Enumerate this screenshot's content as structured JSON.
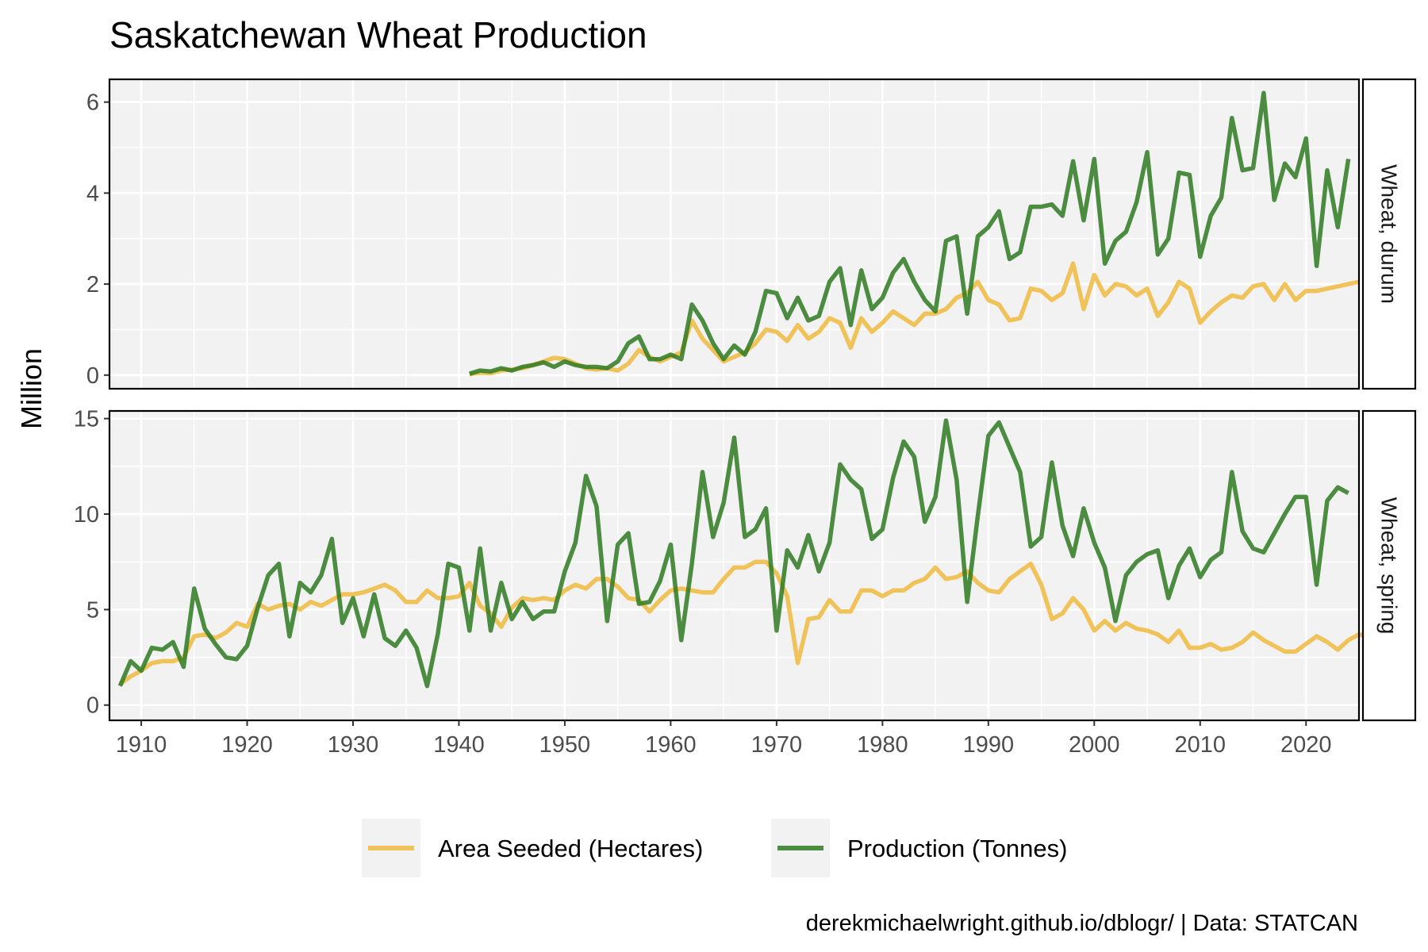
{
  "chart_data": {
    "type": "line",
    "title": "Saskatchewan Wheat Production",
    "ylabel": "Million",
    "xlabel": "",
    "caption": "derekmichaelwright.github.io/dblogr/ | Data: STATCAN",
    "xlim": [
      1907,
      2025
    ],
    "x_ticks": [
      1910,
      1920,
      1930,
      1940,
      1950,
      1960,
      1970,
      1980,
      1990,
      2000,
      2010,
      2020
    ],
    "legend_position": "bottom",
    "grid": true,
    "series_meta": [
      {
        "name": "Area Seeded (Hectares)",
        "color": "#F0BA40"
      },
      {
        "name": "Production (Tonnes)",
        "color": "#2E7A22"
      }
    ],
    "panels": [
      {
        "strip": "Wheat, durum",
        "ylim": [
          -0.3,
          6.5
        ],
        "y_ticks": [
          0,
          2,
          4,
          6
        ],
        "series": [
          {
            "name": "Area Seeded (Hectares)",
            "start_year": 1941,
            "values": [
              0.02,
              0.05,
              0.04,
              0.1,
              0.12,
              0.15,
              0.22,
              0.3,
              0.38,
              0.35,
              0.25,
              0.15,
              0.12,
              0.15,
              0.1,
              0.25,
              0.55,
              0.4,
              0.3,
              0.4,
              0.5,
              1.2,
              0.8,
              0.55,
              0.3,
              0.4,
              0.5,
              0.7,
              1.0,
              0.95,
              0.75,
              1.1,
              0.8,
              0.95,
              1.25,
              1.15,
              0.6,
              1.25,
              0.95,
              1.15,
              1.4,
              1.25,
              1.1,
              1.35,
              1.35,
              1.45,
              1.7,
              1.8,
              2.05,
              1.65,
              1.55,
              1.2,
              1.25,
              1.9,
              1.85,
              1.65,
              1.8,
              2.45,
              1.45,
              2.2,
              1.75,
              2.0,
              1.95,
              1.75,
              1.9,
              1.3,
              1.6,
              2.05,
              1.9,
              1.15,
              1.4,
              1.6,
              1.75,
              1.7,
              1.95,
              2.0,
              1.65,
              2.0,
              1.65,
              1.85,
              1.85,
              1.9,
              1.95,
              2.0,
              2.05
            ]
          },
          {
            "name": "Production (Tonnes)",
            "start_year": 1941,
            "values": [
              0.03,
              0.1,
              0.08,
              0.15,
              0.1,
              0.18,
              0.22,
              0.28,
              0.18,
              0.3,
              0.22,
              0.18,
              0.18,
              0.15,
              0.3,
              0.7,
              0.85,
              0.35,
              0.35,
              0.45,
              0.35,
              1.55,
              1.2,
              0.7,
              0.35,
              0.65,
              0.45,
              0.95,
              1.85,
              1.8,
              1.25,
              1.7,
              1.2,
              1.3,
              2.05,
              2.35,
              1.1,
              2.3,
              1.45,
              1.7,
              2.25,
              2.55,
              2.05,
              1.65,
              1.4,
              2.95,
              3.05,
              1.35,
              3.05,
              3.25,
              3.6,
              2.55,
              2.7,
              3.7,
              3.7,
              3.75,
              3.5,
              4.7,
              3.4,
              4.75,
              2.45,
              2.95,
              3.15,
              3.8,
              4.9,
              2.65,
              3.0,
              4.45,
              4.4,
              2.6,
              3.5,
              3.9,
              5.65,
              4.5,
              4.55,
              6.2,
              3.85,
              4.65,
              4.35,
              5.2,
              2.4,
              4.5,
              3.25,
              4.75
            ]
          }
        ]
      },
      {
        "strip": "Wheat, spring",
        "ylim": [
          -0.8,
          15.4
        ],
        "y_ticks": [
          0,
          5,
          10,
          15
        ],
        "series": [
          {
            "name": "Area Seeded (Hectares)",
            "start_year": 1908,
            "values": [
              1.1,
              1.5,
              1.8,
              2.2,
              2.3,
              2.3,
              2.5,
              3.6,
              3.7,
              3.5,
              3.8,
              4.3,
              4.1,
              5.3,
              5.0,
              5.2,
              5.3,
              5.0,
              5.4,
              5.2,
              5.5,
              5.8,
              5.8,
              5.9,
              6.1,
              6.3,
              6.0,
              5.4,
              5.4,
              6.0,
              5.6,
              5.6,
              5.7,
              6.4,
              5.2,
              4.8,
              4.1,
              5.1,
              5.6,
              5.5,
              5.6,
              5.5,
              6.0,
              6.3,
              6.1,
              6.6,
              6.6,
              6.2,
              5.6,
              5.5,
              4.9,
              5.5,
              6.0,
              6.1,
              6.0,
              5.9,
              5.9,
              6.6,
              7.2,
              7.2,
              7.5,
              7.5,
              6.9,
              5.7,
              2.2,
              4.5,
              4.6,
              5.5,
              4.9,
              4.9,
              6.0,
              6.0,
              5.7,
              6.0,
              6.0,
              6.4,
              6.6,
              7.2,
              6.6,
              6.7,
              7.0,
              6.4,
              6.0,
              5.9,
              6.6,
              7.0,
              7.4,
              6.3,
              4.5,
              4.8,
              5.6,
              5.0,
              3.9,
              4.4,
              3.9,
              4.3,
              4.0,
              3.9,
              3.7,
              3.3,
              3.9,
              3.0,
              3.0,
              3.2,
              2.9,
              3.0,
              3.3,
              3.8,
              3.4,
              3.1,
              2.8,
              2.8,
              3.2,
              3.6,
              3.3,
              2.9,
              3.4,
              3.7,
              3.6
            ]
          },
          {
            "name": "Production (Tonnes)",
            "start_year": 1908,
            "values": [
              1.0,
              2.3,
              1.8,
              3.0,
              2.9,
              3.3,
              2.0,
              6.1,
              4.0,
              3.2,
              2.5,
              2.4,
              3.1,
              5.1,
              6.8,
              7.4,
              3.6,
              6.4,
              5.9,
              6.8,
              8.7,
              4.3,
              5.6,
              3.6,
              5.8,
              3.5,
              3.1,
              3.9,
              3.0,
              1.0,
              3.7,
              7.4,
              7.2,
              3.9,
              8.2,
              3.9,
              6.4,
              4.5,
              5.4,
              4.5,
              4.9,
              4.9,
              7.0,
              8.5,
              12.0,
              10.4,
              4.4,
              8.4,
              9.0,
              5.3,
              5.4,
              6.5,
              8.4,
              3.4,
              7.4,
              12.2,
              8.8,
              10.6,
              14.0,
              8.8,
              9.2,
              10.3,
              3.9,
              8.1,
              7.2,
              8.9,
              7.0,
              8.5,
              12.6,
              11.8,
              11.3,
              8.7,
              9.2,
              11.9,
              13.8,
              13.0,
              9.6,
              10.9,
              14.9,
              11.8,
              5.4,
              9.9,
              14.1,
              14.8,
              13.5,
              12.2,
              8.3,
              8.8,
              12.7,
              9.4,
              7.8,
              10.3,
              8.5,
              7.2,
              4.4,
              6.8,
              7.5,
              7.9,
              8.1,
              5.6,
              7.3,
              8.2,
              6.7,
              7.6,
              8.0,
              12.2,
              9.1,
              8.2,
              8.0,
              9.0,
              10.0,
              10.9,
              10.9,
              6.3,
              10.7,
              11.4,
              11.1
            ]
          }
        ]
      }
    ]
  }
}
